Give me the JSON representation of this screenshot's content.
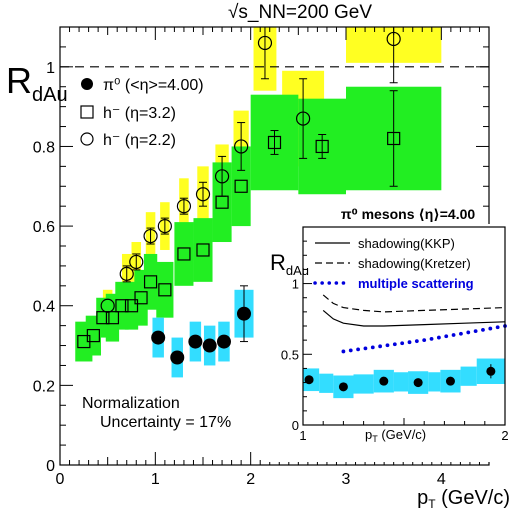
{
  "chart_data": [
    {
      "type": "scatter",
      "title": "√s_NN=200 GeV",
      "ylabel_main": "R",
      "ylabel_sub": "dAu",
      "xlabel_main": "p",
      "xlabel_sub": "T",
      "xlabel_unit": " (GeV/c)",
      "xlim": [
        0,
        4.5
      ],
      "ylim": [
        0,
        1.1
      ],
      "x_ticks": [
        "0",
        "1",
        "2",
        "3",
        "4"
      ],
      "y_ticks": [
        "0",
        "0.2",
        "0.4",
        "0.6",
        "0.8",
        "1"
      ],
      "reference_line": 1.0,
      "legend": [
        {
          "marker": "filled-circle",
          "text": "π⁰ (<η>=4.00)"
        },
        {
          "marker": "open-square",
          "text": "h⁻ (η=3.2)"
        },
        {
          "marker": "open-circle",
          "text": "h⁻ (η=2.2)"
        }
      ],
      "annotation_lines": [
        "Normalization",
        "Uncertainty = 17%"
      ],
      "colors": {
        "pi0_band": "#33ddff",
        "h32_band": "#22ee22",
        "h22_band": "#ffff22",
        "markers": "#000000"
      },
      "series": [
        {
          "marker": "filled-circle",
          "band_color": "#33ddff",
          "points": [
            {
              "x": 1.03,
              "y": 0.32,
              "err": 0.0,
              "bw": 0.06,
              "bh": 0.05
            },
            {
              "x": 1.23,
              "y": 0.27,
              "err": 0.0,
              "bw": 0.06,
              "bh": 0.05
            },
            {
              "x": 1.42,
              "y": 0.31,
              "err": 0.0,
              "bw": 0.06,
              "bh": 0.05
            },
            {
              "x": 1.57,
              "y": 0.3,
              "err": 0.0,
              "bw": 0.06,
              "bh": 0.05
            },
            {
              "x": 1.72,
              "y": 0.31,
              "err": 0.0,
              "bw": 0.06,
              "bh": 0.05
            },
            {
              "x": 1.93,
              "y": 0.38,
              "err": 0.07,
              "bw": 0.1,
              "bh": 0.06
            }
          ]
        },
        {
          "marker": "open-square",
          "band_color": "#22ee22",
          "points": [
            {
              "x": 0.25,
              "y": 0.31,
              "err": 0.0,
              "bw": 0.09,
              "bh": 0.05
            },
            {
              "x": 0.35,
              "y": 0.325,
              "err": 0.0,
              "bw": 0.08,
              "bh": 0.05
            },
            {
              "x": 0.45,
              "y": 0.37,
              "err": 0.0,
              "bw": 0.07,
              "bh": 0.05
            },
            {
              "x": 0.55,
              "y": 0.37,
              "err": 0.0,
              "bw": 0.07,
              "bh": 0.06
            },
            {
              "x": 0.65,
              "y": 0.4,
              "err": 0.0,
              "bw": 0.07,
              "bh": 0.06
            },
            {
              "x": 0.75,
              "y": 0.4,
              "err": 0.0,
              "bw": 0.07,
              "bh": 0.06
            },
            {
              "x": 0.85,
              "y": 0.42,
              "err": 0.0,
              "bw": 0.07,
              "bh": 0.07
            },
            {
              "x": 0.95,
              "y": 0.46,
              "err": 0.0,
              "bw": 0.07,
              "bh": 0.07
            },
            {
              "x": 1.1,
              "y": 0.44,
              "err": 0.0,
              "bw": 0.09,
              "bh": 0.07
            },
            {
              "x": 1.3,
              "y": 0.53,
              "err": 0.0,
              "bw": 0.1,
              "bh": 0.08
            },
            {
              "x": 1.5,
              "y": 0.54,
              "err": 0.0,
              "bw": 0.1,
              "bh": 0.08
            },
            {
              "x": 1.7,
              "y": 0.66,
              "err": 0.0,
              "bw": 0.1,
              "bh": 0.1
            },
            {
              "x": 1.9,
              "y": 0.7,
              "err": 0.0,
              "bw": 0.1,
              "bh": 0.1
            },
            {
              "x": 2.25,
              "y": 0.81,
              "err": 0.03,
              "bw": 0.25,
              "bh": 0.12
            },
            {
              "x": 2.75,
              "y": 0.8,
              "err": 0.03,
              "bw": 0.25,
              "bh": 0.12
            },
            {
              "x": 3.5,
              "y": 0.82,
              "err": 0.12,
              "bw": 0.5,
              "bh": 0.13
            }
          ]
        },
        {
          "marker": "open-circle",
          "band_color": "#ffff22",
          "points": [
            {
              "x": 0.5,
              "y": 0.4,
              "err": 0.0,
              "bw": 0.05,
              "bh": 0.04
            },
            {
              "x": 0.7,
              "y": 0.48,
              "err": 0.02,
              "bw": 0.05,
              "bh": 0.05
            },
            {
              "x": 0.8,
              "y": 0.51,
              "err": 0.02,
              "bw": 0.05,
              "bh": 0.05
            },
            {
              "x": 0.95,
              "y": 0.575,
              "err": 0.02,
              "bw": 0.05,
              "bh": 0.06
            },
            {
              "x": 1.1,
              "y": 0.6,
              "err": 0.02,
              "bw": 0.05,
              "bh": 0.06
            },
            {
              "x": 1.3,
              "y": 0.65,
              "err": 0.02,
              "bw": 0.05,
              "bh": 0.07
            },
            {
              "x": 1.5,
              "y": 0.68,
              "err": 0.03,
              "bw": 0.06,
              "bh": 0.07
            },
            {
              "x": 1.7,
              "y": 0.725,
              "err": 0.05,
              "bw": 0.07,
              "bh": 0.08
            },
            {
              "x": 1.9,
              "y": 0.8,
              "err": 0.06,
              "bw": 0.08,
              "bh": 0.09
            },
            {
              "x": 2.15,
              "y": 1.06,
              "err": 0.09,
              "bw": 0.12,
              "bh": 0.12
            },
            {
              "x": 2.55,
              "y": 0.87,
              "err": 0.1,
              "bw": 0.22,
              "bh": 0.12
            },
            {
              "x": 3.5,
              "y": 1.07,
              "err": 0.11,
              "bw": 0.5,
              "bh": 0.06
            }
          ]
        }
      ]
    },
    {
      "type": "line",
      "title": "π⁰ mesons ⟨η⟩=4.00",
      "ylabel_main": "R",
      "ylabel_sub": "dAu",
      "xlabel_main": "p",
      "xlabel_sub": "T",
      "xlabel_unit": " (GeV/c)",
      "xlim": [
        1,
        2
      ],
      "ylim": [
        0,
        1.4
      ],
      "x_ticks": [
        "1",
        "2"
      ],
      "y_ticks": [
        "0",
        "0.5",
        "1"
      ],
      "legend": [
        {
          "style": "solid",
          "text": "shadowing(KKP)"
        },
        {
          "style": "dashed",
          "text": "shadowing(Kretzer)"
        },
        {
          "style": "dotted",
          "text": "multiple scattering"
        }
      ],
      "colors": {
        "band": "#33ddff",
        "multiple_scattering": "#0000dd"
      },
      "curves": [
        {
          "style": "solid",
          "x": [
            1.1,
            1.15,
            1.2,
            1.3,
            1.4,
            1.6,
            1.8,
            2.0
          ],
          "y": [
            0.81,
            0.75,
            0.72,
            0.7,
            0.7,
            0.71,
            0.72,
            0.73
          ]
        },
        {
          "style": "dashed",
          "x": [
            1.1,
            1.15,
            1.2,
            1.3,
            1.4,
            1.6,
            1.8,
            2.0
          ],
          "y": [
            0.92,
            0.86,
            0.83,
            0.81,
            0.8,
            0.81,
            0.82,
            0.83
          ]
        },
        {
          "style": "dotted",
          "x": [
            1.2,
            1.4,
            1.6,
            1.8,
            2.0
          ],
          "y": [
            0.52,
            0.56,
            0.6,
            0.65,
            0.7
          ]
        }
      ],
      "points": [
        {
          "x": 1.03,
          "y": 0.32,
          "err": 0.0,
          "bw": 0.05,
          "bh": 0.08
        },
        {
          "x": 1.2,
          "y": 0.27,
          "err": 0.0,
          "bw": 0.05,
          "bh": 0.08
        },
        {
          "x": 1.4,
          "y": 0.31,
          "err": 0.0,
          "bw": 0.05,
          "bh": 0.08
        },
        {
          "x": 1.57,
          "y": 0.3,
          "err": 0.0,
          "bw": 0.05,
          "bh": 0.08
        },
        {
          "x": 1.73,
          "y": 0.31,
          "err": 0.0,
          "bw": 0.05,
          "bh": 0.08
        },
        {
          "x": 1.93,
          "y": 0.38,
          "err": 0.05,
          "bw": 0.07,
          "bh": 0.09
        }
      ]
    }
  ]
}
